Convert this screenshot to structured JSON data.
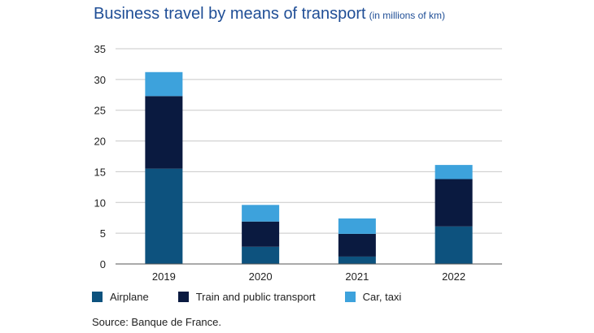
{
  "title": "Business travel by means of transport",
  "subtitle": "(in millions of km)",
  "source": "Source: Banque de France.",
  "chart_data": {
    "type": "bar",
    "stacked": true,
    "title": "Business travel by means of transport",
    "subtitle": "(in millions of km)",
    "xlabel": "",
    "ylabel": "",
    "categories": [
      "2019",
      "2020",
      "2021",
      "2022"
    ],
    "series": [
      {
        "name": "Airplane",
        "color": "#0d527e",
        "values": [
          15.5,
          2.8,
          1.2,
          6.1
        ]
      },
      {
        "name": "Train and public transport",
        "color": "#0a1a40",
        "values": [
          11.8,
          4.1,
          3.7,
          7.7
        ]
      },
      {
        "name": "Car, taxi",
        "color": "#3da2dc",
        "values": [
          3.9,
          2.7,
          2.5,
          2.3
        ]
      }
    ],
    "ylim": [
      0,
      35
    ],
    "yticks": [
      0,
      5,
      10,
      15,
      20,
      25,
      30,
      35
    ],
    "grid": true,
    "legend_position": "bottom"
  }
}
